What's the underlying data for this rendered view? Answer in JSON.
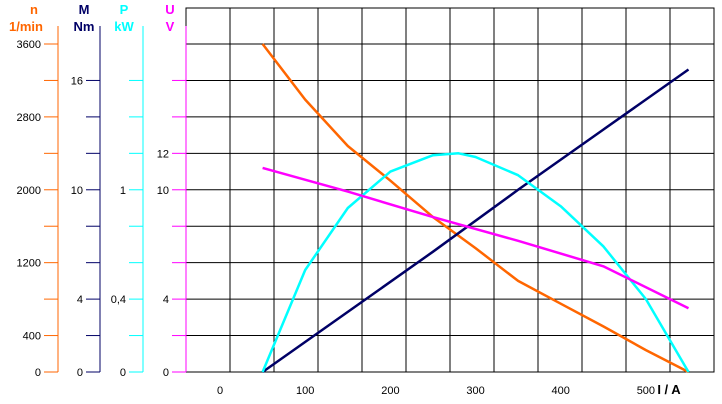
{
  "chart_data": {
    "type": "line",
    "xlabel": "I / A",
    "x_ticks": [
      "0",
      "100",
      "200",
      "300",
      "400",
      "500"
    ],
    "xlim": [
      -40,
      580
    ],
    "grid": true,
    "axes": [
      {
        "id": "n",
        "symbol": "n",
        "unit": "1/min",
        "color": "#ff6600",
        "ylim": [
          0,
          3600
        ],
        "ticks": [
          0,
          400,
          1200,
          2000,
          2800,
          3600
        ],
        "tick_labels": [
          "0",
          "400",
          "1200",
          "2000",
          "2800",
          "3600"
        ],
        "minor_ticks": [
          800,
          1600,
          2400,
          3200
        ]
      },
      {
        "id": "M",
        "symbol": "M",
        "unit": "Nm",
        "color": "#000066",
        "ylim": [
          0,
          18
        ],
        "ticks": [
          0,
          4,
          10,
          16
        ],
        "tick_labels": [
          "0",
          "4",
          "10",
          "16"
        ],
        "minor_ticks": [
          2,
          6,
          8,
          12,
          14
        ]
      },
      {
        "id": "P",
        "symbol": "P",
        "unit": "kW",
        "color": "#00ffff",
        "ylim": [
          0,
          1.8
        ],
        "ticks": [
          0,
          0.4,
          1
        ],
        "tick_labels": [
          "0",
          "0,4",
          "1"
        ],
        "minor_ticks": [
          0.2,
          0.6,
          0.8,
          1.2,
          1.4,
          1.6
        ]
      },
      {
        "id": "U",
        "symbol": "U",
        "unit": "V",
        "color": "#ff00ff",
        "ylim": [
          0,
          18
        ],
        "ticks": [
          0,
          4,
          10,
          12
        ],
        "tick_labels": [
          "0",
          "4",
          "10",
          "12"
        ],
        "minor_ticks": [
          2,
          6,
          8,
          14,
          16
        ]
      }
    ],
    "series": [
      {
        "axis": "n",
        "color": "#ff6600",
        "x": [
          50,
          100,
          150,
          200,
          250,
          300,
          350,
          400,
          450,
          500,
          550
        ],
        "y": [
          3600,
          2990,
          2480,
          2100,
          1700,
          1360,
          1000,
          750,
          500,
          240,
          0
        ]
      },
      {
        "axis": "M",
        "color": "#000066",
        "x": [
          50,
          150,
          250,
          350,
          450,
          550
        ],
        "y": [
          0,
          3.3,
          6.6,
          10,
          13.3,
          16.6
        ]
      },
      {
        "axis": "P",
        "color": "#00ffff",
        "x": [
          50,
          100,
          150,
          200,
          250,
          280,
          300,
          350,
          400,
          450,
          500,
          550
        ],
        "y": [
          0,
          0.56,
          0.9,
          1.1,
          1.19,
          1.2,
          1.18,
          1.08,
          0.91,
          0.69,
          0.4,
          0
        ]
      },
      {
        "axis": "U",
        "color": "#ff00ff",
        "x": [
          50,
          150,
          250,
          350,
          450,
          550
        ],
        "y": [
          11.2,
          9.9,
          8.5,
          7.2,
          5.8,
          3.5
        ]
      }
    ]
  }
}
